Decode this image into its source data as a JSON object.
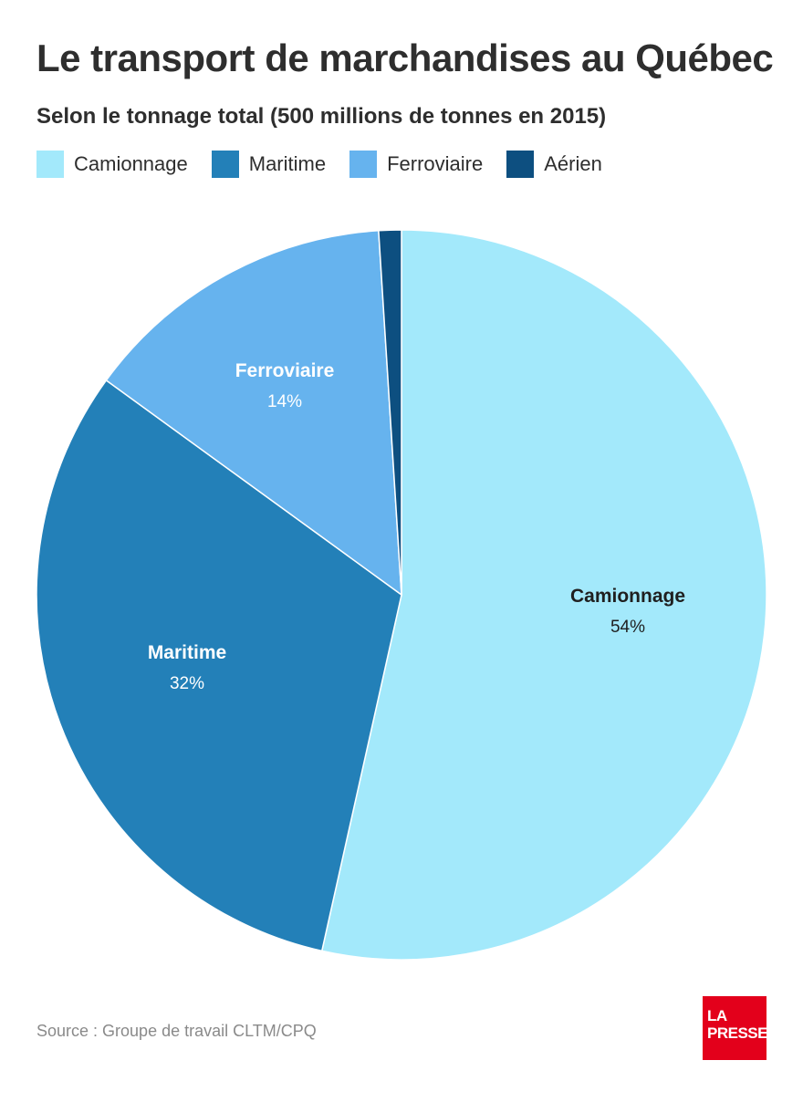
{
  "title": "Le transport de marchandises au Québec",
  "subtitle": "Selon le tonnage total (500 millions de tonnes en 2015)",
  "legend": [
    {
      "label": "Camionnage",
      "color": "#a3e9fb"
    },
    {
      "label": "Maritime",
      "color": "#2380b8"
    },
    {
      "label": "Ferroviaire",
      "color": "#66b3ee"
    },
    {
      "label": "Aérien",
      "color": "#0d4f80"
    }
  ],
  "chart_data": {
    "type": "pie",
    "title": "Le transport de marchandises au Québec",
    "subtitle": "Selon le tonnage total (500 millions de tonnes en 2015)",
    "legend_position": "top-left",
    "slices": [
      {
        "label": "Camionnage",
        "value": 53.5,
        "display": "54%",
        "color": "#a3e9fb",
        "label_color": "#1f1f1f"
      },
      {
        "label": "Maritime",
        "value": 31.5,
        "display": "32%",
        "color": "#2380b8",
        "label_color": "#ffffff"
      },
      {
        "label": "Ferroviaire",
        "value": 14,
        "display": "14%",
        "color": "#66b3ee",
        "label_color": "#ffffff"
      },
      {
        "label": "Aérien",
        "value": 1,
        "display": "",
        "color": "#0d4f80",
        "label_color": "#ffffff"
      }
    ]
  },
  "source": "Source : Groupe de travail CLTM/CPQ",
  "logo": {
    "line1": "LA",
    "line2": "PRESSE"
  }
}
